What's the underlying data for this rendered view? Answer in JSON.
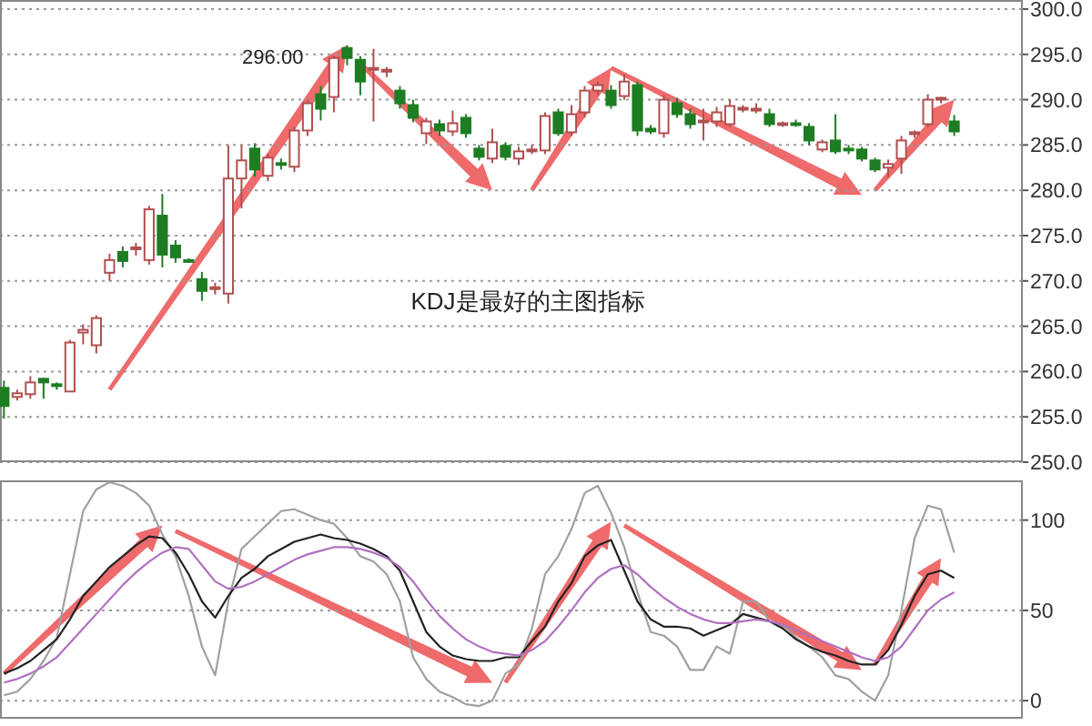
{
  "chart_data": [
    {
      "type": "candlestick",
      "categories": [
        null,
        null,
        null,
        null,
        null,
        null,
        null,
        null,
        null,
        null,
        null,
        null,
        null,
        null,
        null,
        null,
        null,
        null,
        null,
        null,
        null,
        null,
        null,
        null,
        null,
        null,
        null,
        null,
        null,
        null,
        null,
        null,
        null,
        null,
        null,
        null,
        null,
        null,
        null,
        null,
        null,
        null,
        null,
        null,
        null,
        null,
        null,
        null,
        null,
        null,
        null,
        null,
        null,
        null,
        null,
        null,
        null,
        null,
        null,
        null,
        null,
        null,
        null,
        null,
        null,
        null,
        null,
        null,
        null,
        null,
        null,
        null,
        null
      ],
      "ohlc": [
        [
          258.2,
          259.0,
          254.8,
          256.2
        ],
        [
          257.2,
          258.0,
          256.8,
          257.6
        ],
        [
          257.5,
          259.5,
          257.0,
          258.8
        ],
        [
          259.2,
          259.3,
          257.0,
          258.8
        ],
        [
          258.6,
          258.8,
          258.0,
          258.4
        ],
        [
          257.8,
          263.5,
          257.8,
          263.2
        ],
        [
          264.3,
          265.2,
          263.0,
          264.6
        ],
        [
          262.9,
          266.2,
          262.0,
          265.9
        ],
        [
          270.9,
          273.0,
          270.0,
          272.3
        ],
        [
          273.2,
          273.8,
          271.5,
          272.2
        ],
        [
          273.5,
          274.2,
          272.8,
          273.7
        ],
        [
          272.3,
          278.3,
          271.8,
          277.9
        ],
        [
          277.2,
          279.6,
          271.5,
          272.9
        ],
        [
          273.9,
          274.5,
          272.0,
          272.6
        ],
        [
          272.3,
          272.5,
          272.0,
          272.2
        ],
        [
          270.2,
          271.0,
          267.8,
          268.9
        ],
        [
          269.1,
          269.8,
          268.5,
          269.3
        ],
        [
          268.6,
          285.0,
          267.5,
          281.3
        ],
        [
          281.3,
          285.0,
          278.0,
          283.3
        ],
        [
          284.6,
          285.2,
          281.5,
          282.3
        ],
        [
          281.6,
          284.0,
          281.0,
          283.6
        ],
        [
          283.0,
          283.5,
          282.3,
          282.8
        ],
        [
          282.6,
          287.0,
          282.0,
          286.6
        ],
        [
          286.6,
          290.0,
          286.0,
          289.6
        ],
        [
          290.6,
          291.5,
          287.7,
          289.0
        ],
        [
          290.3,
          294.8,
          288.6,
          294.6
        ],
        [
          295.7,
          296.0,
          293.8,
          294.6
        ],
        [
          294.4,
          294.8,
          290.5,
          292.0
        ],
        [
          293.3,
          295.6,
          287.6,
          293.5
        ],
        [
          293.1,
          293.6,
          292.5,
          293.3
        ],
        [
          291.0,
          291.5,
          289.0,
          289.6
        ],
        [
          289.4,
          290.0,
          287.5,
          288.0
        ],
        [
          286.3,
          288.0,
          285.1,
          287.6
        ],
        [
          287.3,
          287.8,
          286.0,
          286.6
        ],
        [
          286.5,
          288.8,
          286.0,
          287.4
        ],
        [
          288.0,
          288.4,
          285.8,
          286.3
        ],
        [
          284.6,
          285.0,
          283.3,
          283.7
        ],
        [
          283.5,
          286.8,
          283.0,
          285.3
        ],
        [
          284.9,
          285.3,
          283.3,
          283.7
        ],
        [
          283.5,
          284.8,
          282.8,
          284.3
        ],
        [
          284.3,
          285.0,
          284.0,
          284.5
        ],
        [
          284.4,
          288.6,
          284.0,
          288.2
        ],
        [
          288.6,
          289.0,
          286.0,
          286.3
        ],
        [
          286.4,
          289.4,
          286.0,
          288.4
        ],
        [
          288.6,
          291.5,
          288.0,
          291.0
        ],
        [
          291.0,
          292.0,
          290.5,
          291.6
        ],
        [
          291.0,
          291.6,
          289.0,
          289.4
        ],
        [
          290.4,
          292.8,
          290.0,
          292.0
        ],
        [
          291.6,
          292.0,
          286.0,
          286.6
        ],
        [
          286.8,
          287.2,
          286.2,
          286.5
        ],
        [
          286.3,
          290.5,
          285.8,
          290.0
        ],
        [
          289.6,
          290.2,
          288.0,
          288.4
        ],
        [
          288.4,
          289.0,
          286.8,
          287.3
        ],
        [
          287.5,
          289.0,
          285.5,
          287.7
        ],
        [
          287.6,
          289.2,
          287.0,
          288.6
        ],
        [
          287.3,
          290.0,
          287.0,
          289.3
        ],
        [
          288.9,
          289.4,
          288.6,
          289.1
        ],
        [
          288.9,
          289.6,
          288.5,
          289.0
        ],
        [
          288.4,
          289.0,
          287.0,
          287.3
        ],
        [
          287.2,
          287.6,
          287.0,
          287.4
        ],
        [
          287.4,
          287.8,
          287.0,
          287.3
        ],
        [
          287.0,
          287.4,
          285.0,
          285.5
        ],
        [
          284.5,
          285.6,
          284.2,
          285.3
        ],
        [
          285.5,
          288.4,
          284.0,
          284.3
        ],
        [
          284.6,
          285.0,
          284.0,
          284.4
        ],
        [
          284.5,
          284.8,
          283.2,
          283.5
        ],
        [
          283.3,
          283.6,
          282.0,
          282.3
        ],
        [
          282.5,
          283.4,
          281.5,
          282.9
        ],
        [
          283.5,
          286.0,
          281.8,
          285.5
        ],
        [
          286.2,
          286.6,
          285.8,
          286.4
        ],
        [
          287.3,
          290.6,
          287.0,
          290.0
        ],
        [
          290.0,
          290.3,
          289.6,
          290.2
        ],
        [
          287.6,
          288.3,
          286.0,
          286.5
        ]
      ],
      "ylim": [
        250,
        301
      ],
      "yticks": [
        {
          "value": 250,
          "label": "250.0"
        },
        {
          "value": 255,
          "label": "255.0"
        },
        {
          "value": 260,
          "label": "260.0"
        },
        {
          "value": 265,
          "label": "265.0"
        },
        {
          "value": 270,
          "label": "270.0"
        },
        {
          "value": 275,
          "label": "275.0"
        },
        {
          "value": 280,
          "label": "280.0"
        },
        {
          "value": 285,
          "label": "285.0"
        },
        {
          "value": 290,
          "label": "290.0"
        },
        {
          "value": 295,
          "label": "295.0"
        },
        {
          "value": 300,
          "label": "300.0"
        }
      ],
      "grid": "y",
      "tick_labels": "y",
      "annotations": [
        "296.00",
        "KDJ是最好的主图指标"
      ]
    },
    {
      "type": "line",
      "categories": [
        null,
        null,
        null,
        null,
        null,
        null,
        null,
        null,
        null,
        null,
        null,
        null,
        null,
        null,
        null,
        null,
        null,
        null,
        null,
        null,
        null,
        null,
        null,
        null,
        null,
        null,
        null,
        null,
        null,
        null,
        null,
        null,
        null,
        null,
        null,
        null,
        null,
        null,
        null,
        null,
        null,
        null,
        null,
        null,
        null,
        null,
        null,
        null,
        null,
        null,
        null,
        null,
        null,
        null,
        null,
        null,
        null,
        null,
        null,
        null,
        null,
        null,
        null,
        null,
        null,
        null,
        null,
        null,
        null,
        null,
        null,
        null,
        null
      ],
      "series": [
        {
          "color": "#a0a0a0",
          "values": [
            3,
            5,
            12,
            22,
            35,
            70,
            105,
            117,
            121,
            119,
            115,
            108,
            92,
            80,
            58,
            30,
            14,
            55,
            84,
            91,
            98,
            105,
            106,
            103,
            100,
            98,
            90,
            80,
            77,
            70,
            55,
            24,
            12,
            5,
            2,
            -2,
            -3,
            0,
            15,
            20,
            40,
            70,
            80,
            95,
            115,
            119,
            104,
            85,
            60,
            38,
            36,
            30,
            17,
            17,
            30,
            26,
            55,
            55,
            44,
            42,
            35,
            30,
            24,
            14,
            12,
            5,
            0,
            14,
            50,
            90,
            108,
            106,
            82
          ]
        },
        {
          "color": "#222222",
          "values": [
            15,
            18,
            22,
            28,
            34,
            45,
            58,
            66,
            74,
            80,
            86,
            91,
            90,
            82,
            70,
            55,
            46,
            58,
            68,
            73,
            80,
            84,
            88,
            90,
            92,
            90,
            89,
            87,
            84,
            80,
            72,
            55,
            38,
            30,
            25,
            23,
            22,
            22,
            24,
            24,
            33,
            41,
            55,
            65,
            80,
            86,
            89,
            72,
            55,
            45,
            41,
            41,
            40,
            36,
            39,
            42,
            48,
            46,
            44,
            40,
            34,
            30,
            27,
            25,
            22,
            20,
            20,
            28,
            42,
            58,
            70,
            72,
            68
          ]
        },
        {
          "color": "#b070c0",
          "values": [
            10,
            12,
            15,
            19,
            24,
            32,
            40,
            48,
            56,
            64,
            71,
            77,
            82,
            85,
            84,
            75,
            66,
            62,
            63,
            66,
            70,
            74,
            78,
            81,
            83,
            85,
            85,
            84,
            82,
            79,
            74,
            66,
            56,
            47,
            40,
            34,
            30,
            27,
            26,
            25,
            28,
            33,
            41,
            50,
            60,
            68,
            73,
            75,
            70,
            63,
            57,
            52,
            48,
            45,
            43,
            43,
            44,
            45,
            44,
            42,
            39,
            36,
            33,
            30,
            27,
            24,
            22,
            24,
            30,
            40,
            50,
            56,
            60
          ]
        }
      ],
      "ylim": [
        -10,
        122
      ],
      "yticks": [
        0,
        50,
        100
      ],
      "grid": "y",
      "tick_labels": "y"
    }
  ]
}
